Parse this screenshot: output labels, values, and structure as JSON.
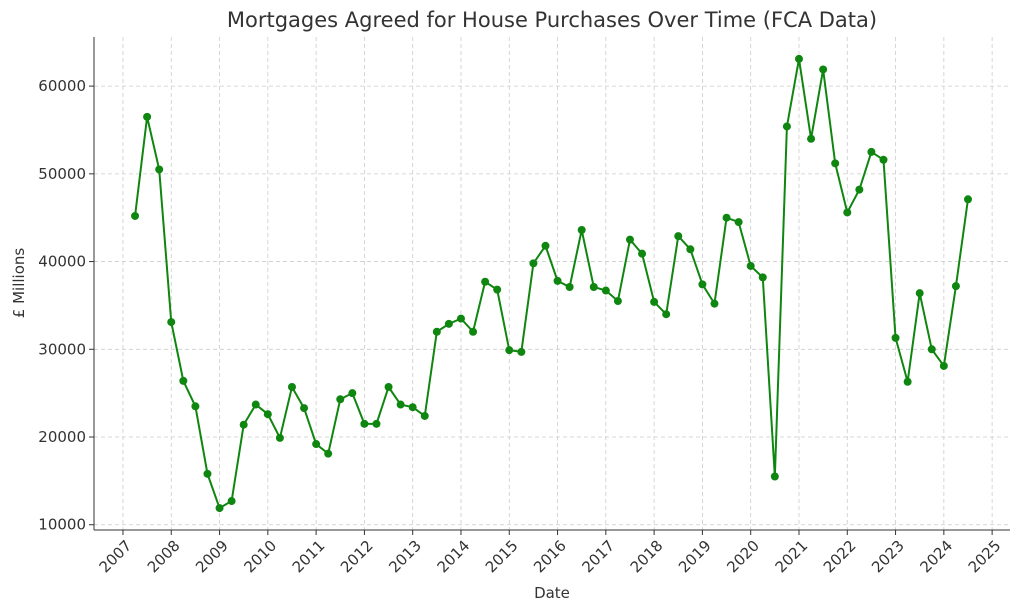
{
  "chart_data": {
    "type": "line",
    "title": "Mortgages Agreed for House Purchases Over Time (FCA Data)",
    "x_label": "Date",
    "y_label": "£ Millions",
    "x": [
      2007.25,
      2007.5,
      2007.75,
      2008.0,
      2008.25,
      2008.5,
      2008.75,
      2009.0,
      2009.25,
      2009.5,
      2009.75,
      2010.0,
      2010.25,
      2010.5,
      2010.75,
      2011.0,
      2011.25,
      2011.5,
      2011.75,
      2012.0,
      2012.25,
      2012.5,
      2012.75,
      2013.0,
      2013.25,
      2013.5,
      2013.75,
      2014.0,
      2014.25,
      2014.5,
      2014.75,
      2015.0,
      2015.25,
      2015.5,
      2015.75,
      2016.0,
      2016.25,
      2016.5,
      2016.75,
      2017.0,
      2017.25,
      2017.5,
      2017.75,
      2018.0,
      2018.25,
      2018.5,
      2018.75,
      2019.0,
      2019.25,
      2019.5,
      2019.75,
      2020.0,
      2020.25,
      2020.5,
      2020.75,
      2021.0,
      2021.25,
      2021.5,
      2021.75,
      2022.0,
      2022.25,
      2022.5,
      2022.75,
      2023.0,
      2023.25,
      2023.5,
      2023.75,
      2024.0,
      2024.25,
      2024.5
    ],
    "series": [
      {
        "color": "#0f860f",
        "values": [
          45200,
          56500,
          50500,
          33100,
          26400,
          23500,
          15800,
          11900,
          12700,
          21400,
          23700,
          22600,
          19900,
          25700,
          23300,
          19200,
          18100,
          24300,
          25000,
          21500,
          21500,
          25700,
          23700,
          23400,
          22400,
          32000,
          32900,
          33500,
          32000,
          37700,
          36800,
          29900,
          29700,
          39800,
          41800,
          37800,
          37100,
          43600,
          37100,
          36700,
          35500,
          42500,
          40900,
          35400,
          34000,
          42900,
          41400,
          37400,
          35200,
          45000,
          44500,
          39500,
          38200,
          15500,
          55400,
          63100,
          54000,
          61900,
          51200,
          45600,
          48200,
          52500,
          51600,
          31300,
          26300,
          36400,
          30000,
          28100,
          37200,
          47100
        ]
      }
    ],
    "xlim": [
      2006.4,
      2025.37
    ],
    "xticks": [
      2007,
      2008,
      2009,
      2010,
      2011,
      2012,
      2013,
      2014,
      2015,
      2016,
      2017,
      2018,
      2019,
      2020,
      2021,
      2022,
      2023,
      2024,
      2025
    ],
    "ylim": [
      9400,
      65600
    ],
    "yticks": [
      10000,
      20000,
      30000,
      40000,
      50000,
      60000
    ],
    "grid": true
  }
}
